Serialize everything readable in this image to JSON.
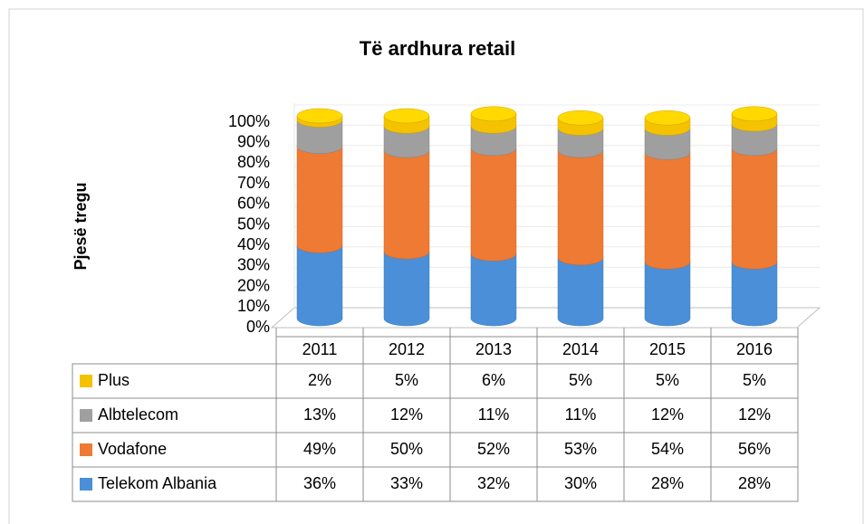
{
  "chart_data": {
    "type": "bar",
    "stacked": true,
    "title": "Të ardhura retail",
    "y_label": "Pjesë tregu",
    "categories": [
      "2011",
      "2012",
      "2013",
      "2014",
      "2015",
      "2016"
    ],
    "series": [
      {
        "name": "Telekom Albania",
        "color": "#4a8fd8",
        "values": [
          36,
          33,
          32,
          30,
          28,
          28
        ],
        "value_labels": [
          "36%",
          "33%",
          "32%",
          "30%",
          "28%",
          "28%"
        ]
      },
      {
        "name": "Vodafone",
        "color": "#ee7a33",
        "values": [
          49,
          50,
          52,
          53,
          54,
          56
        ],
        "value_labels": [
          "49%",
          "50%",
          "52%",
          "53%",
          "54%",
          "56%"
        ]
      },
      {
        "name": "Albtelecom",
        "color": "#9f9f9f",
        "values": [
          13,
          12,
          11,
          11,
          12,
          12
        ],
        "value_labels": [
          "13%",
          "12%",
          "11%",
          "11%",
          "12%",
          "12%"
        ]
      },
      {
        "name": "Plus",
        "color": "#f5c200",
        "values": [
          2,
          5,
          6,
          5,
          5,
          5
        ],
        "value_labels": [
          "2%",
          "5%",
          "6%",
          "5%",
          "5%",
          "5%"
        ]
      }
    ],
    "ylim": [
      0,
      100
    ],
    "yticks": [
      {
        "value": 0,
        "label": "0%"
      },
      {
        "value": 10,
        "label": "10%"
      },
      {
        "value": 20,
        "label": "20%"
      },
      {
        "value": 30,
        "label": "30%"
      },
      {
        "value": 40,
        "label": "40%"
      },
      {
        "value": 50,
        "label": "50%"
      },
      {
        "value": 60,
        "label": "60%"
      },
      {
        "value": 70,
        "label": "70%"
      },
      {
        "value": 80,
        "label": "80%"
      },
      {
        "value": 90,
        "label": "90%"
      },
      {
        "value": 100,
        "label": "100%"
      }
    ],
    "grid": true
  }
}
